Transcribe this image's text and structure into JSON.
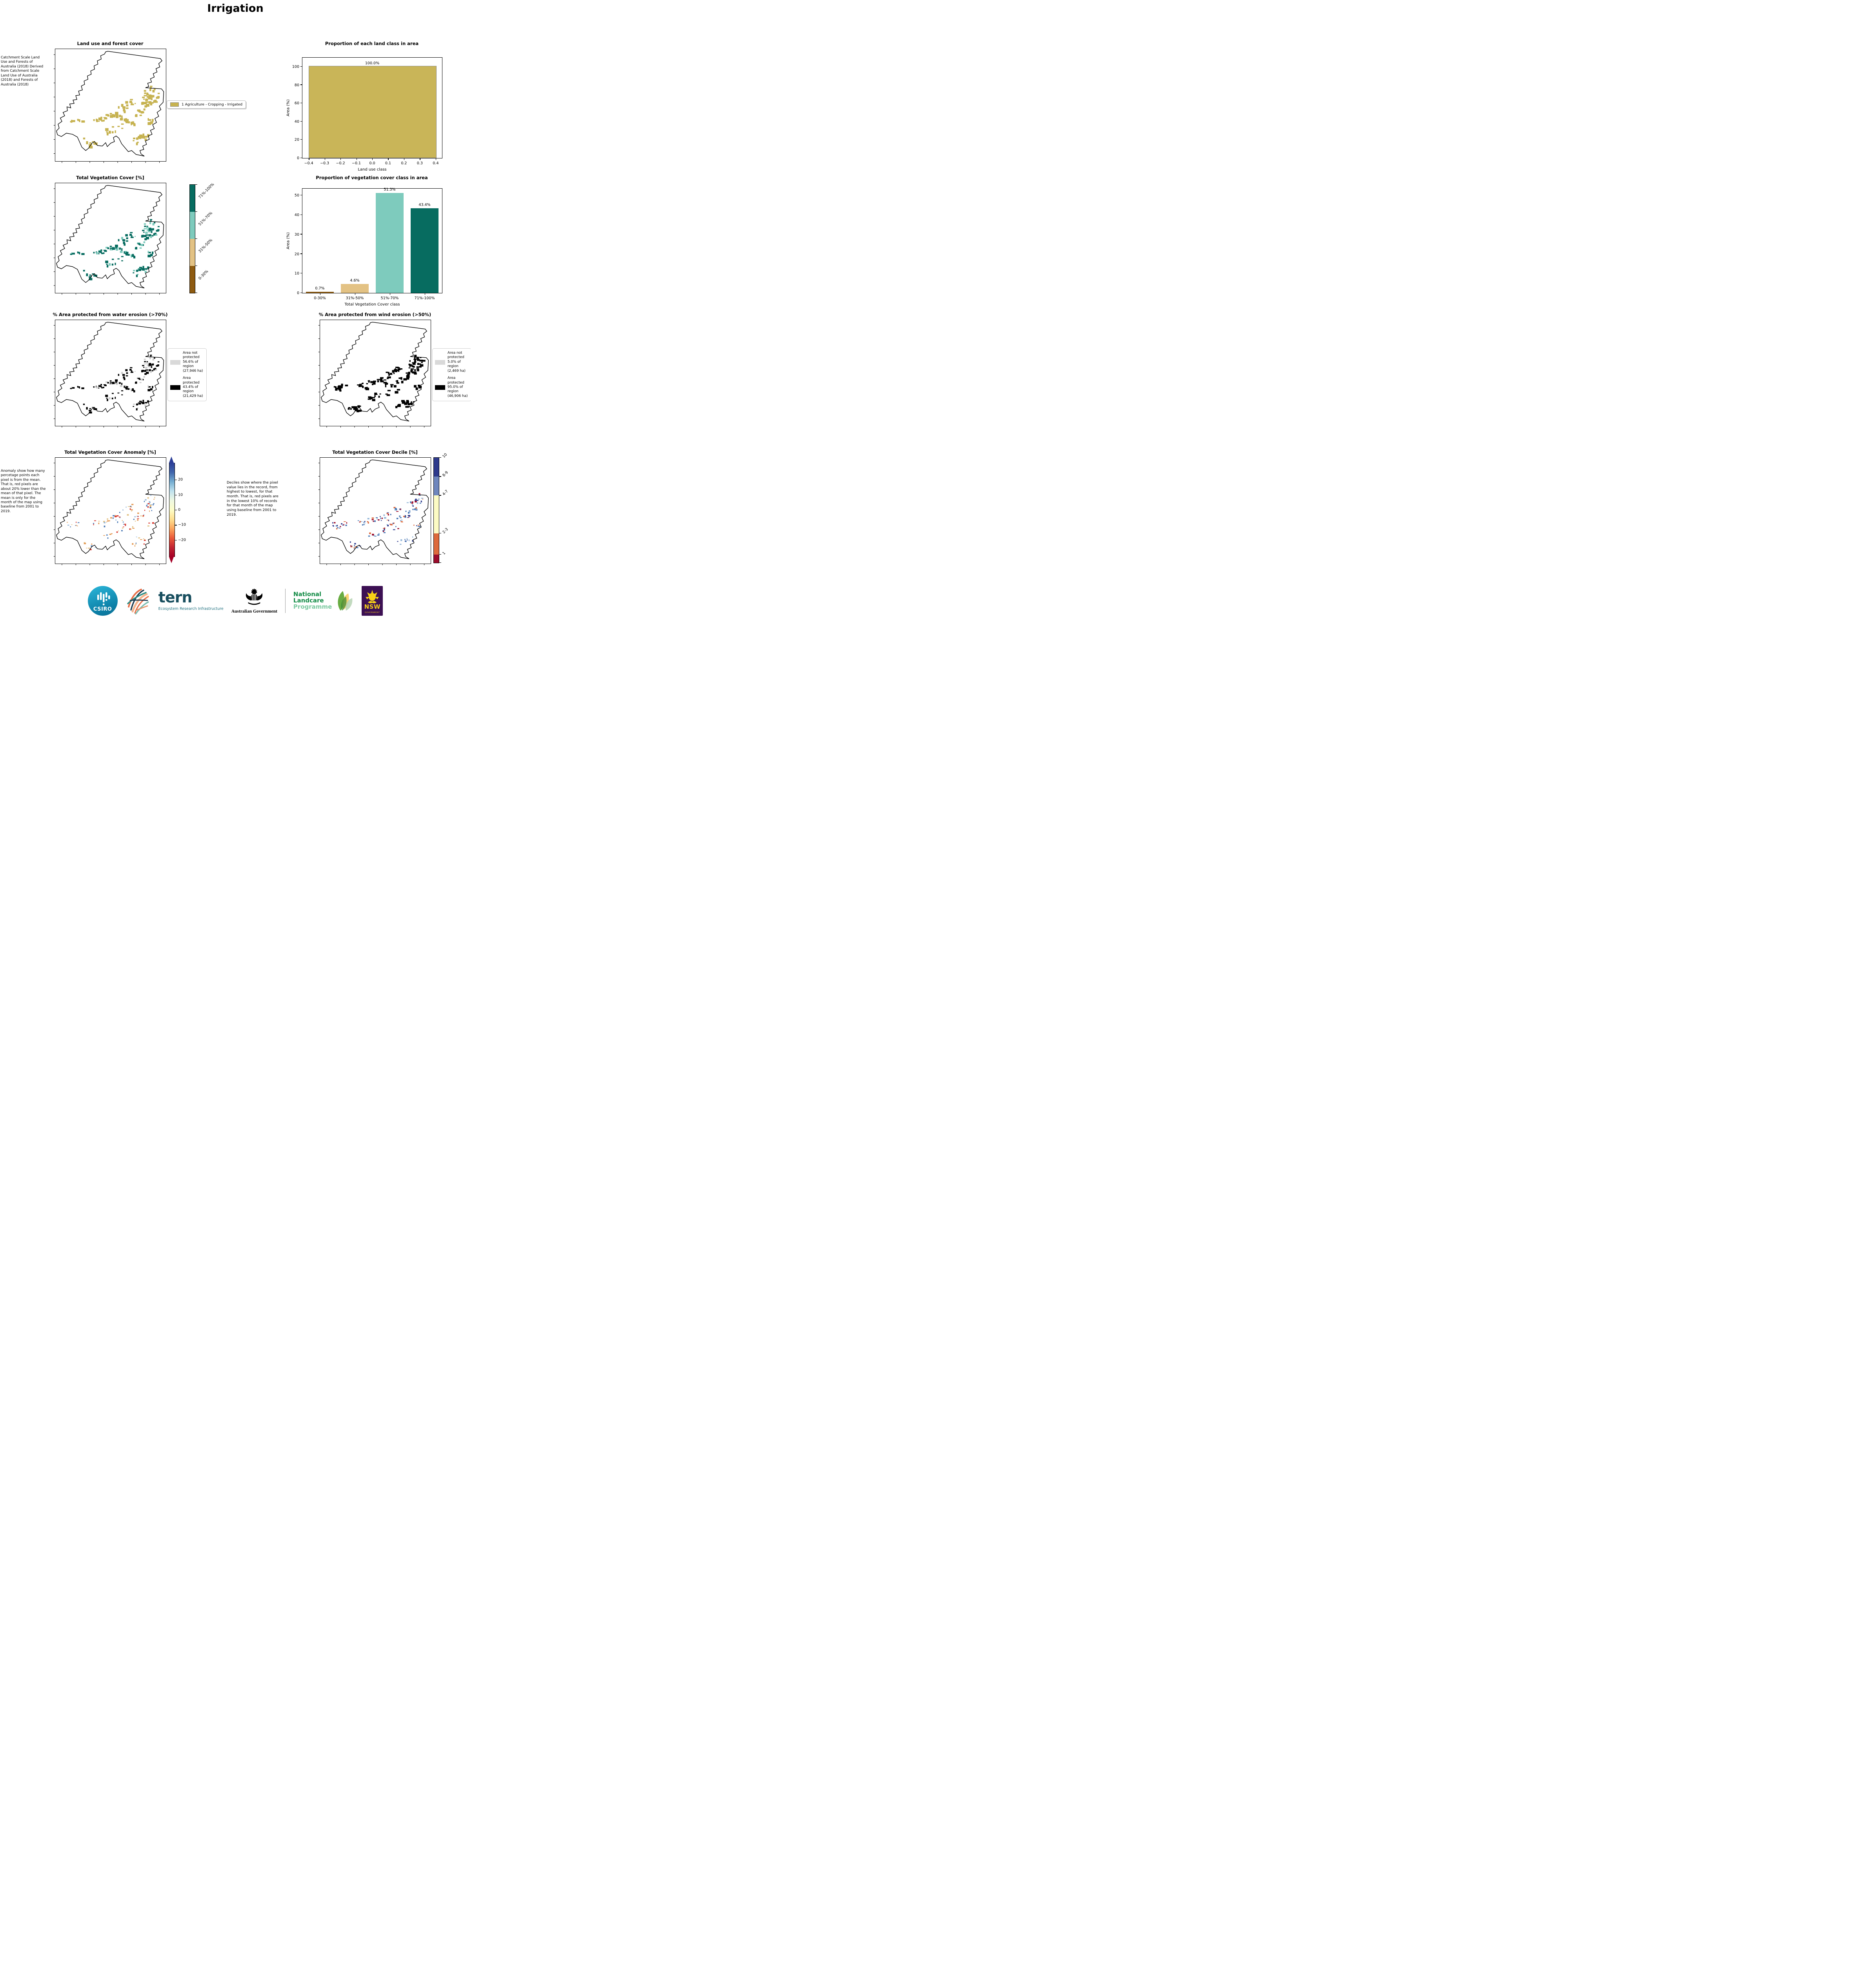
{
  "page": {
    "title": "Irrigation"
  },
  "maps": {
    "landuse": {
      "title": "Land use and forest cover",
      "caption": " Catchment Scale Land Use and Forests of Australia (2018) Derived from Catchment Scale Land Use of Australia (2018) and Forests of Australia (2018)",
      "legend_label": "1 Agriculture - Cropping - Irrigated",
      "legend_color": "#c6b250"
    },
    "veg": {
      "title": "Total Vegetation Cover [%]",
      "classes": [
        {
          "label": "71%-100%",
          "color": "#076c60"
        },
        {
          "label": "51%-70%",
          "color": "#7ecbbd"
        },
        {
          "label": "31%-50%",
          "color": "#e3c284"
        },
        {
          "label": "0-30%",
          "color": "#8e5b11"
        }
      ]
    },
    "water": {
      "title": "% Area protected from water erosion (>70%)",
      "legend": [
        {
          "color": "#d9d9d9",
          "label": "Area not protected 56.6% of region (27,946 ha)"
        },
        {
          "color": "#000000",
          "label": "Area protected 43.4% of region (21,429 ha)"
        }
      ]
    },
    "wind": {
      "title": "% Area protected from wind erosion (>50%)",
      "legend": [
        {
          "color": "#d9d9d9",
          "label": "Area not protected 5.0% of region (2,469 ha)"
        },
        {
          "color": "#000000",
          "label": "Area protected 95.0% of region (46,906 ha)"
        }
      ]
    },
    "anomaly": {
      "title": "Total Vegetation Cover Anomaly [%]",
      "note": "Anomaly show how many percetage points each pixel is from the mean. That is, red pixels are about 20% lower than the mean of that pixel. The mean is only for the month of the map using baseline from 2001 to 2019.",
      "colorbar_ticks": [
        "20",
        "10",
        "0",
        "−10",
        "−20"
      ],
      "colorbar_colors": [
        "#2c3e98",
        "#3f65ab",
        "#74add1",
        "#bfe1ee",
        "#eef8e2",
        "#fdfdc8",
        "#fee090",
        "#fca55d",
        "#ea5839",
        "#c22432",
        "#a50026"
      ]
    },
    "decile": {
      "title": "Total Vegetation Cover Decile [%]",
      "note": "Deciles show where the pixel value lies in the record, from highest to lowest, for that month. That is, red pixels are in the lowest 10% of records for that month of the map using baseline from 2001 to 2019.",
      "classes": [
        {
          "label": "10",
          "color": "#2e3a8c",
          "h": 18
        },
        {
          "label": "8-9",
          "color": "#6e86bd",
          "h": 18
        },
        {
          "label": "4-7",
          "color": "#fcfbc4",
          "h": 36
        },
        {
          "label": "2-3",
          "color": "#dd6a3c",
          "h": 20
        },
        {
          "label": "1",
          "color": "#9c0c2c",
          "h": 8
        }
      ]
    }
  },
  "chart_data": [
    {
      "type": "bar",
      "title": "Proportion of each land class in area",
      "xlabel": "Land use class",
      "ylabel": "Area (%)",
      "categories": [
        "1 Agriculture - Cropping - Irrigated"
      ],
      "values": [
        100.0
      ],
      "bar_labels": [
        "100.0%"
      ],
      "bar_colors": [
        "#c9b558"
      ],
      "bar_edge": "#8a8a8a",
      "xtick_labels": [
        "−0.4",
        "−0.3",
        "−0.2",
        "−0.1",
        "0.0",
        "0.1",
        "0.2",
        "0.3",
        "0.4"
      ],
      "xtick_values": [
        -0.4,
        -0.3,
        -0.2,
        -0.1,
        0,
        0.1,
        0.2,
        0.3,
        0.4
      ],
      "xlim": [
        -0.44,
        0.44
      ],
      "yticks": [
        0,
        20,
        40,
        60,
        80,
        100
      ],
      "ylim": [
        0,
        110
      ],
      "grid": false,
      "legend_position": "none"
    },
    {
      "type": "bar",
      "title": "Proportion of vegetation cover class in area",
      "xlabel": "Total Vegetation Cover class",
      "ylabel": "Area (%)",
      "categories": [
        "0-30%",
        "31%-50%",
        "51%-70%",
        "71%-100%"
      ],
      "values": [
        0.7,
        4.6,
        51.3,
        43.4
      ],
      "bar_labels": [
        "0.7%",
        "4.6%",
        "51.3%",
        "43.4%"
      ],
      "bar_colors": [
        "#8e5b11",
        "#e3c284",
        "#7ecbbd",
        "#076c60"
      ],
      "yticks": [
        0,
        10,
        20,
        30,
        40,
        50
      ],
      "ylim": [
        0,
        53.5
      ],
      "grid": false,
      "legend_position": "none"
    }
  ],
  "footer": {
    "csiro": "CSIRO",
    "tern": "tern",
    "tern_sub": "Ecosystem Research Infrastructure",
    "ausgov": "Australian Government",
    "landcare1": "National",
    "landcare2": "Landcare",
    "landcare3": "Programme",
    "nsw": "NSW",
    "nsw_sub": "GOVERNMENT"
  }
}
